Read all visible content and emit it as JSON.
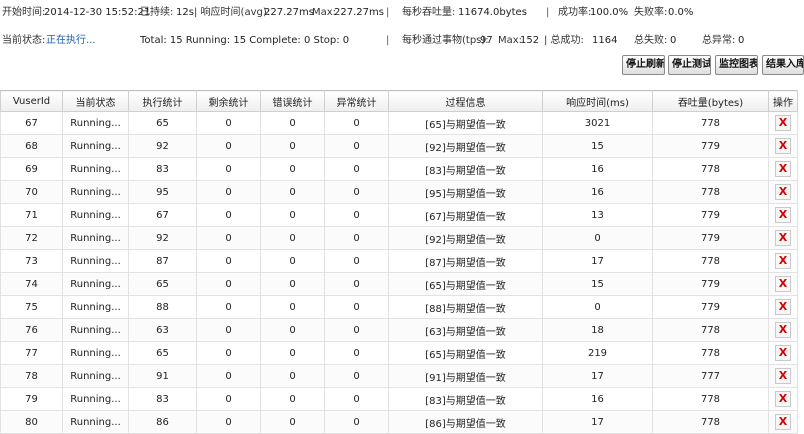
{
  "stats": {
    "start_label": "开始时间:",
    "start_value": "2014-12-30 15:52:21",
    "elapsed_label": "已持续:",
    "elapsed_value": "12s",
    "resp_avg_label": "| 响应时间(avg):",
    "resp_avg_value": "227.27ms",
    "max_label": "Max:",
    "max_value": "227.27ms",
    "sep1": "|",
    "throughput_label": "每秒吞吐量:",
    "throughput_value": "11674.0bytes",
    "sep2": "|",
    "success_rate_label": "成功率:",
    "success_rate_value": "100.0%",
    "fail_rate_label": "失败率:",
    "fail_rate_value": "0.0%",
    "status_label": "当前状态:",
    "status_value": "正在执行...",
    "counts_text": "Total: 15  Running: 15  Complete: 0  Stop: 0",
    "sep3": "|",
    "tps_label": "每秒通过事物(tps):",
    "tps_value": "97",
    "tps_max_label": "Max:",
    "tps_max_value": "152",
    "success_total_label": "| 总成功:",
    "success_total_value": "1164",
    "fail_total_label": "总失败:",
    "fail_total_value": "0",
    "error_total_label": "总异常:",
    "error_total_value": "0"
  },
  "toolbar": {
    "stop_refresh": "停止刷新",
    "stop_test": "停止测试",
    "monitor_chart": "监控图表",
    "save_results": "结果入库"
  },
  "table": {
    "headers": [
      "VuserId",
      "当前状态",
      "执行统计",
      "剩余统计",
      "错误统计",
      "异常统计",
      "过程信息",
      "响应时间(ms)",
      "吞吐量(bytes)",
      "操作"
    ],
    "delete_glyph": "X",
    "rows": [
      {
        "id": "67",
        "status": "Running...",
        "exec": "65",
        "remain": "0",
        "err": "0",
        "exc": "0",
        "info": "[65]与期望值一致",
        "resp": "3021",
        "tput": "778"
      },
      {
        "id": "68",
        "status": "Running...",
        "exec": "92",
        "remain": "0",
        "err": "0",
        "exc": "0",
        "info": "[92]与期望值一致",
        "resp": "15",
        "tput": "779"
      },
      {
        "id": "69",
        "status": "Running...",
        "exec": "83",
        "remain": "0",
        "err": "0",
        "exc": "0",
        "info": "[83]与期望值一致",
        "resp": "16",
        "tput": "778"
      },
      {
        "id": "70",
        "status": "Running...",
        "exec": "95",
        "remain": "0",
        "err": "0",
        "exc": "0",
        "info": "[95]与期望值一致",
        "resp": "16",
        "tput": "778"
      },
      {
        "id": "71",
        "status": "Running...",
        "exec": "67",
        "remain": "0",
        "err": "0",
        "exc": "0",
        "info": "[67]与期望值一致",
        "resp": "13",
        "tput": "779"
      },
      {
        "id": "72",
        "status": "Running...",
        "exec": "92",
        "remain": "0",
        "err": "0",
        "exc": "0",
        "info": "[92]与期望值一致",
        "resp": "0",
        "tput": "779"
      },
      {
        "id": "73",
        "status": "Running...",
        "exec": "87",
        "remain": "0",
        "err": "0",
        "exc": "0",
        "info": "[87]与期望值一致",
        "resp": "17",
        "tput": "778"
      },
      {
        "id": "74",
        "status": "Running...",
        "exec": "65",
        "remain": "0",
        "err": "0",
        "exc": "0",
        "info": "[65]与期望值一致",
        "resp": "15",
        "tput": "779"
      },
      {
        "id": "75",
        "status": "Running...",
        "exec": "88",
        "remain": "0",
        "err": "0",
        "exc": "0",
        "info": "[88]与期望值一致",
        "resp": "0",
        "tput": "779"
      },
      {
        "id": "76",
        "status": "Running...",
        "exec": "63",
        "remain": "0",
        "err": "0",
        "exc": "0",
        "info": "[63]与期望值一致",
        "resp": "18",
        "tput": "778"
      },
      {
        "id": "77",
        "status": "Running...",
        "exec": "65",
        "remain": "0",
        "err": "0",
        "exc": "0",
        "info": "[65]与期望值一致",
        "resp": "219",
        "tput": "778"
      },
      {
        "id": "78",
        "status": "Running...",
        "exec": "91",
        "remain": "0",
        "err": "0",
        "exc": "0",
        "info": "[91]与期望值一致",
        "resp": "17",
        "tput": "777"
      },
      {
        "id": "79",
        "status": "Running...",
        "exec": "83",
        "remain": "0",
        "err": "0",
        "exc": "0",
        "info": "[83]与期望值一致",
        "resp": "16",
        "tput": "778"
      },
      {
        "id": "80",
        "status": "Running...",
        "exec": "86",
        "remain": "0",
        "err": "0",
        "exc": "0",
        "info": "[86]与期望值一致",
        "resp": "17",
        "tput": "778"
      }
    ]
  }
}
